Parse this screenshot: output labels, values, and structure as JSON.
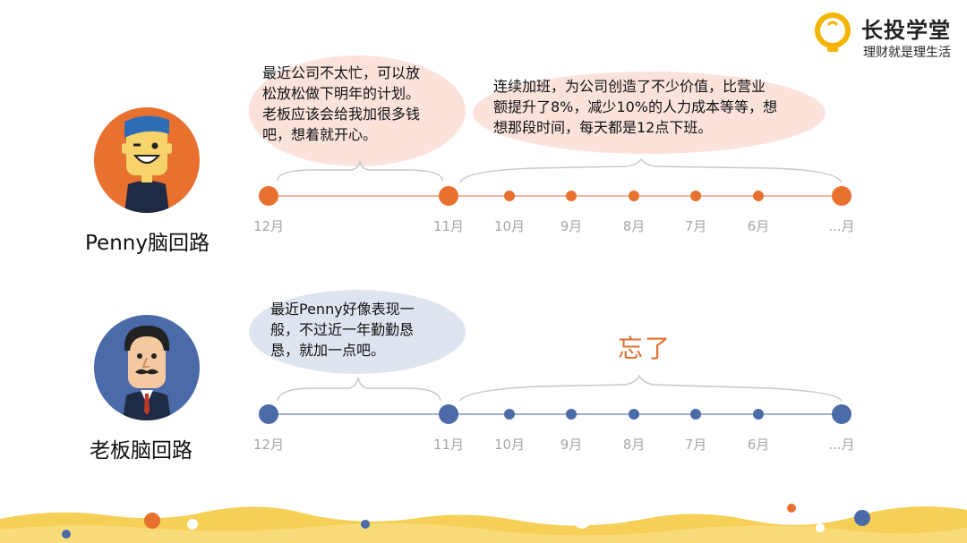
{
  "brand": {
    "name": "长投学堂",
    "slogan": "理财就是理生活",
    "logo": "lightbulb-logo",
    "color": "#f4b400"
  },
  "colors": {
    "penny": "#e8712f",
    "boss": "#4a6aa8",
    "timeline_line": "#f0b79a",
    "boss_line": "#9eafd0",
    "bubble_penny": "#fbe3dc",
    "bubble_boss": "#dfe5f0",
    "footer_wave": "#f6cf56",
    "forgot_text": "#e0702e"
  },
  "months": [
    "12月",
    "11月",
    "10月",
    "9月",
    "8月",
    "7月",
    "6月",
    "...月"
  ],
  "penny": {
    "label": "Penny脑回路",
    "bubble1": [
      "最近公司不太忙，可以放",
      "松放松做下明年的计划。",
      "老板应该会给我加很多钱",
      "吧，想着就开心。"
    ],
    "bubble2": [
      "连续加班，为公司创造了不少价值，比营业",
      "额提升了8%，减少10%的人力成本等等，想",
      "想那段时间，每天都是12点下班。"
    ]
  },
  "boss": {
    "label": "老板脑回路",
    "bubble1": [
      "最近Penny好像表现一",
      "般，不过近一年勤勤恳",
      "恳，就加一点吧。"
    ],
    "forgot": "忘了"
  }
}
